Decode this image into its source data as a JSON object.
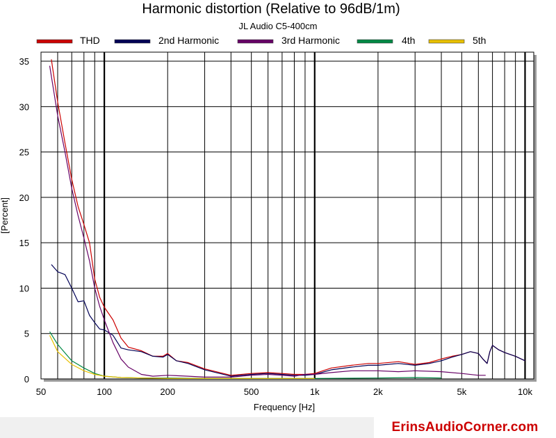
{
  "chart_data": {
    "type": "line",
    "title": "Harmonic distortion (Relative to 96dB/1m)",
    "subtitle": "JL Audio C5-400cm",
    "xlabel": "Frequency [Hz]",
    "ylabel": "[Percent]",
    "x_scale": "log",
    "xlim": [
      50,
      11000
    ],
    "ylim": [
      0,
      36
    ],
    "x_ticks": [
      50,
      100,
      200,
      500,
      1000,
      2000,
      5000,
      10000
    ],
    "x_tick_labels": [
      "50",
      "100",
      "200",
      "500",
      "1k",
      "2k",
      "5k",
      "10k"
    ],
    "y_ticks": [
      0,
      5,
      10,
      15,
      20,
      25,
      30,
      35
    ],
    "y_tick_labels": [
      "0",
      "5",
      "10",
      "15",
      "20",
      "25",
      "30",
      "35"
    ],
    "grid": true,
    "legend_position": "top",
    "series": [
      {
        "name": "THD",
        "color": "#cc0000",
        "x": [
          56,
          60,
          65,
          70,
          75,
          80,
          85,
          90,
          95,
          100,
          110,
          120,
          130,
          150,
          170,
          190,
          200,
          220,
          250,
          300,
          400,
          500,
          600,
          700,
          800,
          900,
          1000,
          1200,
          1500,
          1800,
          2000,
          2500,
          3000,
          3500,
          4000,
          4500,
          5000,
          5500,
          6000,
          6300,
          6600,
          6800,
          7000,
          7500,
          8000,
          9000,
          10000
        ],
        "y": [
          35.2,
          30.5,
          26,
          22,
          19,
          17,
          15,
          11,
          9,
          7.9,
          6.5,
          4.5,
          3.5,
          3.1,
          2.5,
          2.5,
          2.8,
          2.0,
          1.8,
          1.1,
          0.4,
          0.6,
          0.7,
          0.6,
          0.5,
          0.5,
          0.6,
          1.2,
          1.5,
          1.7,
          1.7,
          1.9,
          1.6,
          1.8,
          2.2,
          2.5,
          2.7,
          3.0,
          2.8,
          2.2,
          1.7,
          3.0,
          3.7,
          3.2,
          2.9,
          2.5,
          2.0
        ]
      },
      {
        "name": "2nd Harmonic",
        "color": "#000055",
        "x": [
          56,
          60,
          65,
          70,
          75,
          80,
          85,
          90,
          95,
          100,
          110,
          120,
          130,
          150,
          170,
          190,
          200,
          220,
          250,
          300,
          400,
          500,
          600,
          700,
          800,
          900,
          1000,
          1200,
          1500,
          1800,
          2000,
          2500,
          3000,
          3500,
          4000,
          4500,
          5000,
          5500,
          6000,
          6300,
          6600,
          6800,
          7000,
          7500,
          8000,
          9000,
          10000
        ],
        "y": [
          12.6,
          11.8,
          11.5,
          10.0,
          8.5,
          8.6,
          7.0,
          6.2,
          5.5,
          5.4,
          4.8,
          3.4,
          3.2,
          3.0,
          2.5,
          2.4,
          2.7,
          2.0,
          1.7,
          1.0,
          0.3,
          0.5,
          0.6,
          0.5,
          0.4,
          0.4,
          0.5,
          1.0,
          1.3,
          1.5,
          1.5,
          1.7,
          1.5,
          1.7,
          2.0,
          2.4,
          2.7,
          3.0,
          2.8,
          2.2,
          1.7,
          3.0,
          3.7,
          3.2,
          2.9,
          2.5,
          2.0
        ]
      },
      {
        "name": "3rd Harmonic",
        "color": "#660066",
        "x": [
          55,
          60,
          65,
          70,
          75,
          80,
          85,
          90,
          95,
          100,
          110,
          120,
          130,
          150,
          170,
          200,
          250,
          300,
          400,
          500,
          600,
          700,
          800,
          900,
          1000,
          1200,
          1500,
          2000,
          2500,
          3000,
          4000,
          5000,
          6000,
          6500
        ],
        "y": [
          34.5,
          29,
          25,
          21,
          18,
          15.5,
          13,
          10,
          8,
          6.5,
          4.0,
          2.2,
          1.3,
          0.5,
          0.3,
          0.4,
          0.3,
          0.2,
          0.2,
          0.4,
          0.5,
          0.4,
          0.3,
          0.5,
          0.5,
          0.7,
          0.9,
          0.9,
          0.8,
          0.9,
          0.8,
          0.6,
          0.4,
          0.4
        ]
      },
      {
        "name": "4th",
        "color": "#008844",
        "x": [
          55,
          60,
          70,
          80,
          90,
          100,
          120,
          150,
          200,
          300,
          500,
          1000,
          2000,
          3000,
          4000
        ],
        "y": [
          5.2,
          3.8,
          2.0,
          1.2,
          0.6,
          0.3,
          0.15,
          0.1,
          0.1,
          0.05,
          0.05,
          0.05,
          0.1,
          0.15,
          0.1
        ]
      },
      {
        "name": "5th",
        "color": "#e8c000",
        "x": [
          55,
          60,
          70,
          80,
          90,
          100,
          120,
          150,
          200,
          300,
          500,
          1000
        ],
        "y": [
          4.8,
          3.0,
          1.6,
          0.9,
          0.5,
          0.3,
          0.15,
          0.1,
          0.05,
          0.05,
          0.05,
          0.05
        ]
      }
    ]
  },
  "footer": {
    "watermark": "ErinsAudioCorner.com"
  }
}
